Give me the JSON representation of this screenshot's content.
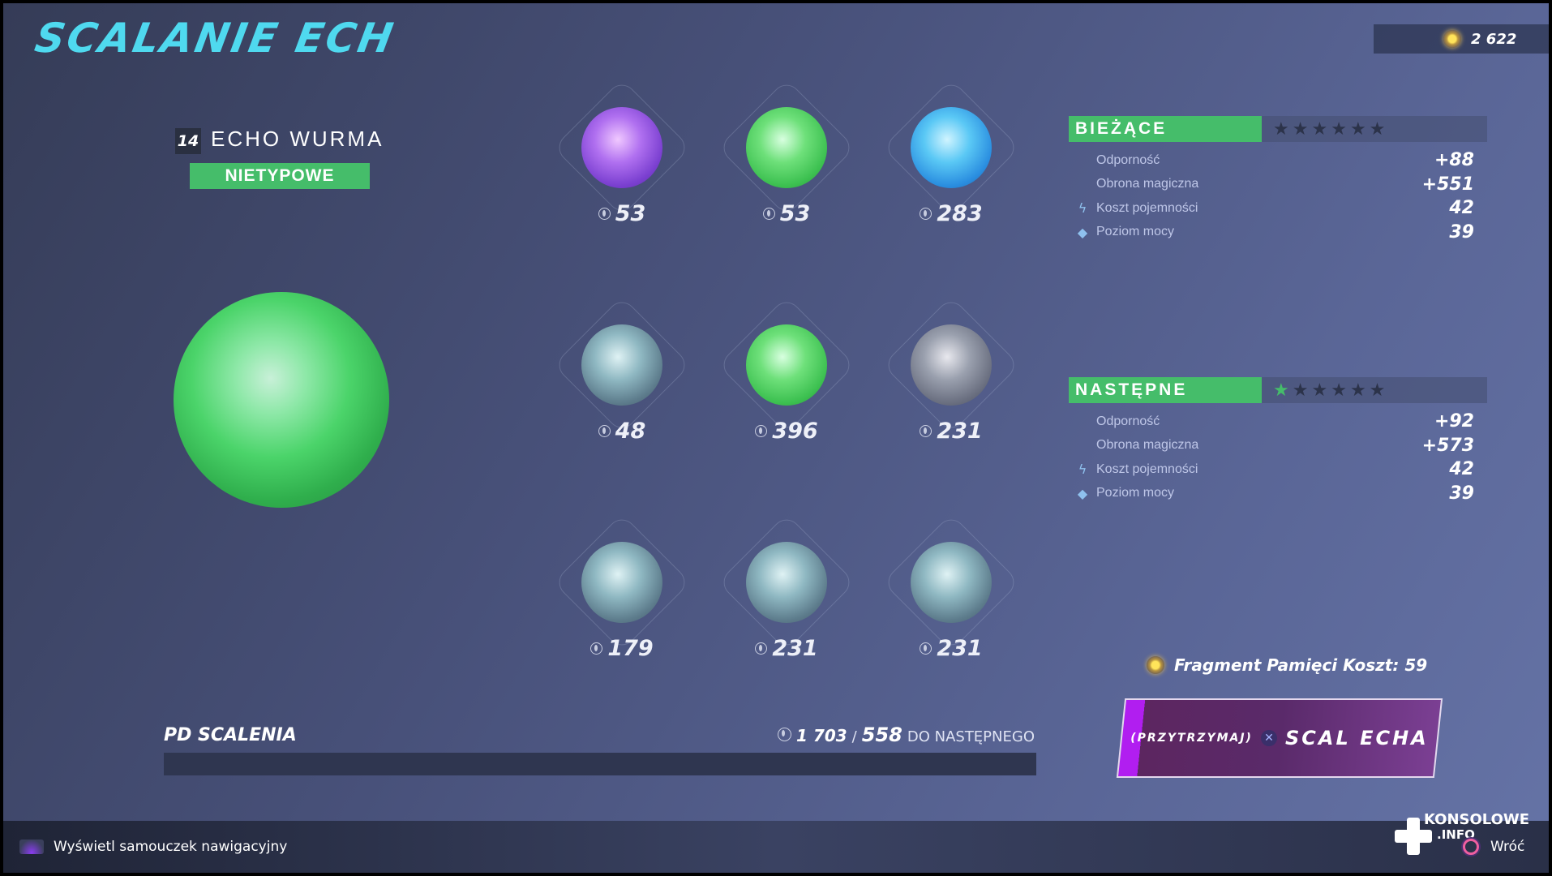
{
  "header": {
    "title": "SCALANIE ECH",
    "currency": {
      "icon": "memory-fragment-coin-icon",
      "value": "2 622"
    }
  },
  "item": {
    "level": "14",
    "name": "ECHO WURMA",
    "rarity": "NIETYPOWE",
    "rarity_color": "#45bd6a"
  },
  "echoes": [
    {
      "cost": "53",
      "color": "purple"
    },
    {
      "cost": "53",
      "color": "green"
    },
    {
      "cost": "283",
      "color": "blue"
    },
    {
      "cost": "48",
      "color": "grey-teal"
    },
    {
      "cost": "396",
      "color": "green"
    },
    {
      "cost": "231",
      "color": "grey"
    },
    {
      "cost": "179",
      "color": "grey-teal"
    },
    {
      "cost": "231",
      "color": "grey-teal"
    },
    {
      "cost": "231",
      "color": "grey-teal"
    }
  ],
  "current": {
    "title": "BIEŻĄCE",
    "stars_filled": 0,
    "stars_total": 6,
    "stats": [
      {
        "label": "Odporność",
        "value": "+88",
        "icon": ""
      },
      {
        "label": "Obrona magiczna",
        "value": "+551",
        "icon": ""
      },
      {
        "label": "Koszt pojemności",
        "value": "42",
        "icon": "lightning-icon"
      },
      {
        "label": "Poziom mocy",
        "value": "39",
        "icon": "power-diamond-icon"
      }
    ]
  },
  "next": {
    "title": "NASTĘPNE",
    "stars_filled": 1,
    "stars_total": 6,
    "stats": [
      {
        "label": "Odporność",
        "value": "+92",
        "icon": ""
      },
      {
        "label": "Obrona magiczna",
        "value": "+573",
        "icon": ""
      },
      {
        "label": "Koszt pojemności",
        "value": "42",
        "icon": "lightning-icon"
      },
      {
        "label": "Poziom mocy",
        "value": "39",
        "icon": "power-diamond-icon"
      }
    ]
  },
  "fragment_cost": "Fragment Pamięci Koszt: 59",
  "fuse_button": {
    "hold": "(PRZYTRZYMAJ)",
    "label": "SCAL ECHA",
    "button_glyph": "✕"
  },
  "xp": {
    "label": "PD SCALENIA",
    "current": "1 703",
    "separator": "/",
    "needed": "558",
    "suffix": "DO NASTĘPNEGO",
    "progress": 0
  },
  "footer": {
    "tutorial": "Wyświetl samouczek nawigacyjny",
    "back": "Wróć",
    "watermark": "KONSOLOWE .INFO"
  },
  "colors": {
    "accent": "#4fd9ef",
    "green": "#45bd6a",
    "button": "#5c2660"
  }
}
